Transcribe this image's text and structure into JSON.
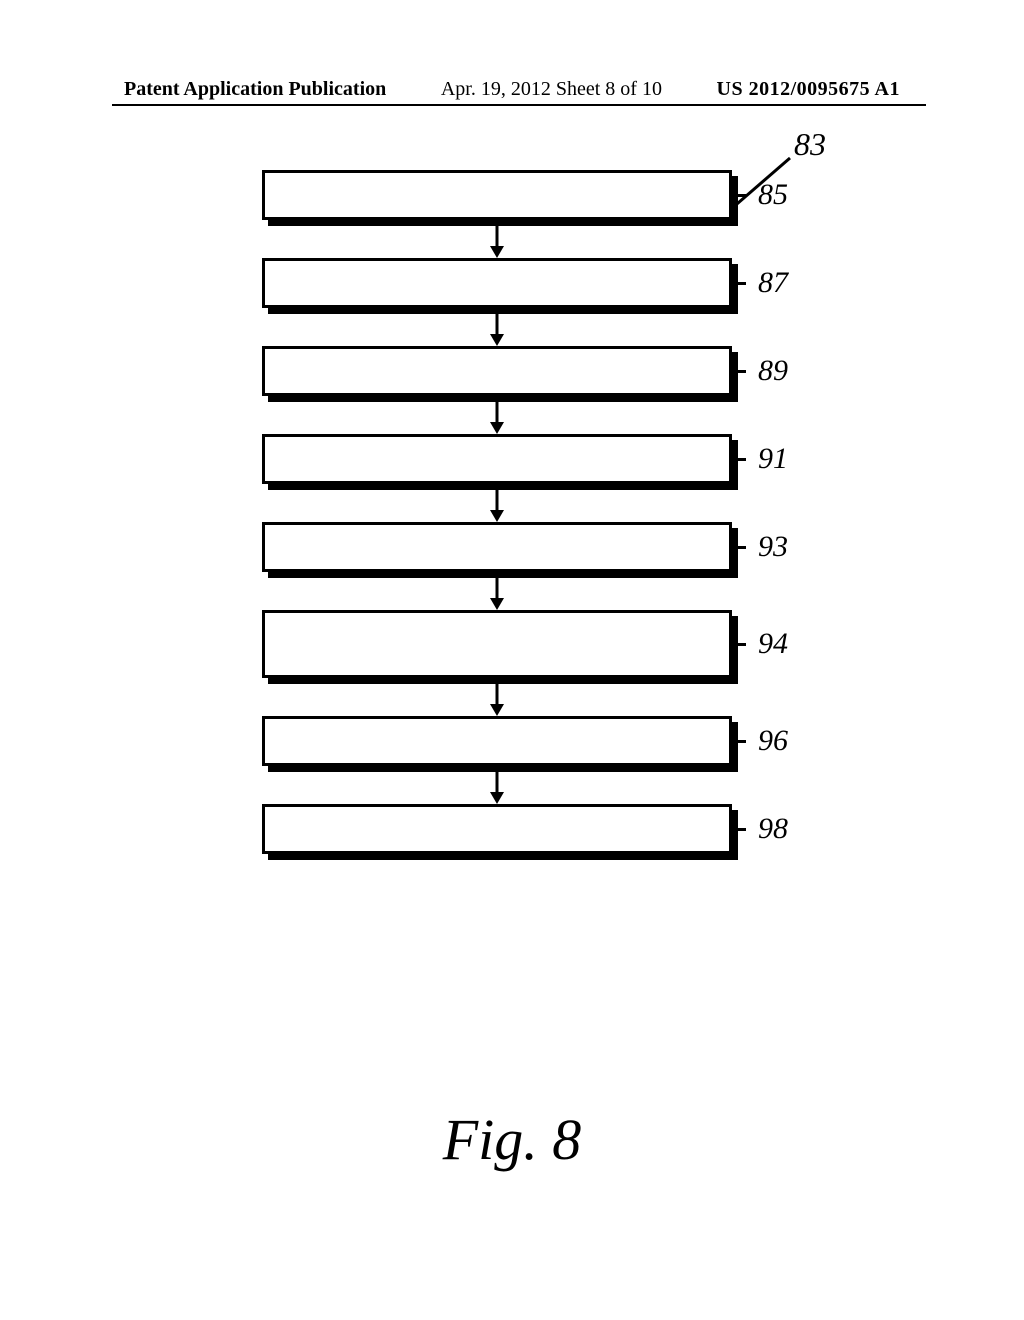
{
  "header": {
    "left": "Patent Application Publication",
    "center": "Apr. 19, 2012  Sheet 8 of 10",
    "right": "US 2012/0095675 A1"
  },
  "diagram": {
    "ref_label": "83",
    "boxes": [
      {
        "label": "85",
        "tall": false
      },
      {
        "label": "87",
        "tall": false
      },
      {
        "label": "89",
        "tall": false
      },
      {
        "label": "91",
        "tall": false
      },
      {
        "label": "93",
        "tall": false
      },
      {
        "label": "94",
        "tall": true
      },
      {
        "label": "96",
        "tall": false
      },
      {
        "label": "98",
        "tall": false
      }
    ],
    "arrow_height": 38,
    "box_color": "#ffffff",
    "border_color": "#000000",
    "shadow_color": "#000000"
  },
  "figure_caption": "Fig. 8"
}
